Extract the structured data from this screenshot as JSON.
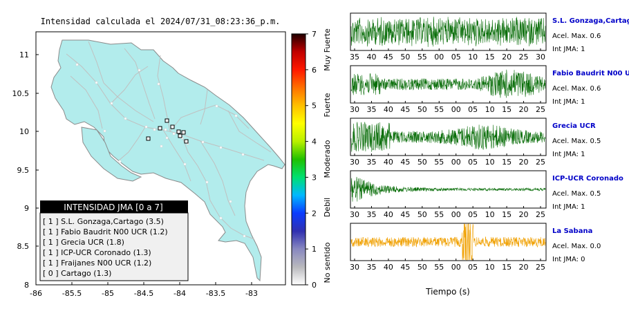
{
  "map": {
    "title": "Intensidad calculada el 2024/07/31_08:23:36_p.m.",
    "x_ticks": [
      "-86",
      "-85.5",
      "-85",
      "-84.5",
      "-84",
      "-83.5",
      "-83"
    ],
    "y_ticks": [
      "11",
      "10.5",
      "10",
      "9.5",
      "9",
      "8.5",
      "8"
    ],
    "legend": {
      "title": "INTENSIDAD JMA [0 a 7]",
      "items": [
        "[ 1 ]  S.L. Gonzaga,Cartago (3.5)",
        "[ 1 ]  Fabio Baudrit N00 UCR (1.2)",
        "[ 1 ]  Grecia UCR (1.8)",
        "[ 1 ]  ICP-UCR Coronado (1.3)",
        "[ 1 ]  Fraijanes N00 UCR (1.2)",
        "[ 0 ]  Cartago (1.3)"
      ]
    },
    "colors": {
      "land": "#b2ecec",
      "border": "#8a8a8a",
      "roads": "#c0c0c0"
    }
  },
  "colorbar": {
    "ticks": [
      "0",
      "1",
      "2",
      "3",
      "4",
      "5",
      "6",
      "7"
    ],
    "labels": [
      "No sentido",
      "Debil",
      "Moderado",
      "Fuerte",
      "Muy Fuerte"
    ],
    "colors": [
      "#ffffff",
      "#b9b9bd",
      "#8888c0",
      "#3030b0",
      "#0a3cff",
      "#00b8ff",
      "#00e070",
      "#20c000",
      "#b8f000",
      "#ffff00",
      "#ffc000",
      "#ff7000",
      "#ff1800",
      "#c00000",
      "#200000"
    ]
  },
  "waveforms": {
    "xlabel": "Tiempo (s)",
    "panels": [
      {
        "name": "S.L. Gonzaga,Cartago",
        "accel": "Acel. Max. 0.6",
        "jma": "Int JMA: 1",
        "color": "#0a6e0a",
        "ticks": [
          "35",
          "40",
          "45",
          "50",
          "55",
          "00",
          "05",
          "10",
          "15",
          "20",
          "25",
          "30"
        ],
        "envelope": "steady"
      },
      {
        "name": "Fabio Baudrit N00 UCR",
        "accel": "Acel. Max. 0.6",
        "jma": "Int JMA: 1",
        "color": "#0a6e0a",
        "ticks": [
          "30",
          "35",
          "40",
          "45",
          "50",
          "55",
          "00",
          "05",
          "10",
          "15",
          "20",
          "25"
        ],
        "envelope": "late"
      },
      {
        "name": "Grecia UCR",
        "accel": "Acel. Max. 0.5",
        "jma": "Int JMA: 1",
        "color": "#0a6e0a",
        "ticks": [
          "30",
          "35",
          "40",
          "45",
          "50",
          "55",
          "00",
          "05",
          "10",
          "15",
          "20",
          "25"
        ],
        "envelope": "early"
      },
      {
        "name": "ICP-UCR Coronado",
        "accel": "Acel. Max. 0.5",
        "jma": "Int JMA: 1",
        "color": "#0a6e0a",
        "ticks": [
          "30",
          "35",
          "40",
          "45",
          "50",
          "55",
          "00",
          "05",
          "10",
          "15",
          "20",
          "25"
        ],
        "envelope": "decay"
      },
      {
        "name": "La Sabana",
        "accel": "Acel. Max. 0.0",
        "jma": "Int JMA: 0",
        "color": "#f0a000",
        "ticks": [
          "30",
          "35",
          "40",
          "45",
          "50",
          "55",
          "00",
          "05",
          "10",
          "15",
          "20",
          "25"
        ],
        "envelope": "flat"
      }
    ]
  }
}
